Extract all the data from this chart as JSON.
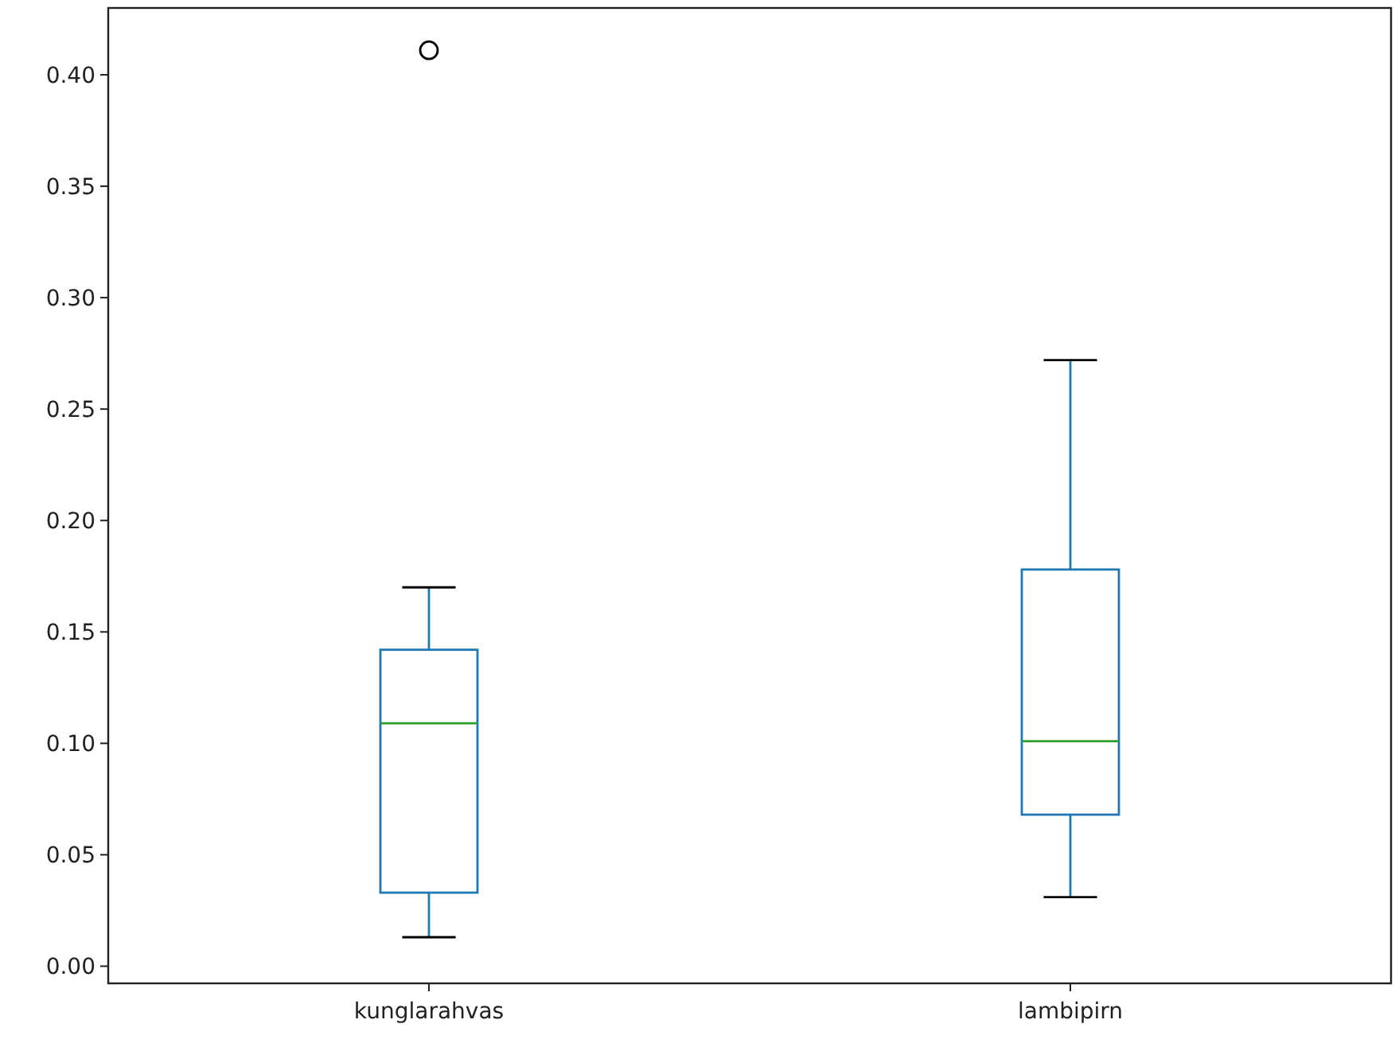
{
  "chart_data": {
    "type": "box",
    "categories": [
      "kunglarahvas",
      "lambipirn"
    ],
    "color": "#1f77b4",
    "boxes": [
      {
        "low": 0.013,
        "q1": 0.033,
        "median": 0.109,
        "q3": 0.142,
        "high": 0.17,
        "outliers": [
          0.411
        ]
      },
      {
        "low": 0.031,
        "q1": 0.068,
        "median": 0.101,
        "q3": 0.178,
        "high": 0.272
      }
    ],
    "ylim": [
      -0.0077,
      0.43
    ],
    "yticks": [
      {
        "value": 0,
        "label": "0.00"
      },
      {
        "value": 0.05,
        "label": "0.05"
      },
      {
        "value": 0.1,
        "label": "0.10"
      },
      {
        "value": 0.15,
        "label": "0.15"
      },
      {
        "value": 0.2,
        "label": "0.20"
      },
      {
        "value": 0.25,
        "label": "0.25"
      },
      {
        "value": 0.3,
        "label": "0.30"
      },
      {
        "value": 0.35,
        "label": "0.35"
      },
      {
        "value": 0.4,
        "label": "0.40"
      }
    ],
    "grid": false
  }
}
